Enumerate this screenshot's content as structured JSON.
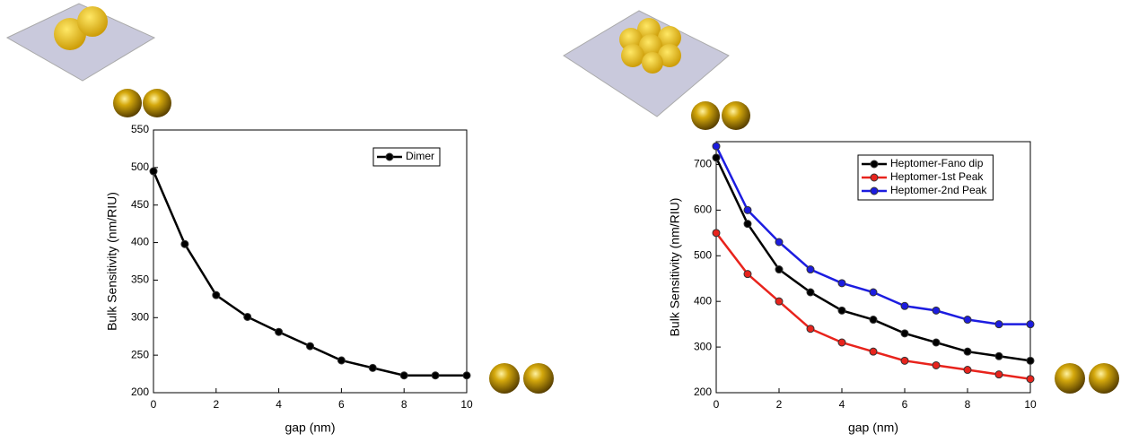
{
  "chart_data": [
    {
      "type": "line",
      "x": [
        0,
        1,
        2,
        3,
        4,
        5,
        6,
        7,
        8,
        9,
        10
      ],
      "series": [
        {
          "name": "Dimer",
          "color": "#000000",
          "values": [
            495,
            398,
            330,
            301,
            281,
            262,
            243,
            233,
            223,
            223,
            223
          ]
        }
      ],
      "xlim": [
        0,
        10
      ],
      "ylim": [
        200,
        550
      ],
      "xticks": [
        0,
        2,
        4,
        6,
        8,
        10
      ],
      "yticks": [
        200,
        250,
        300,
        350,
        400,
        450,
        500,
        550
      ],
      "x_label": "gap (nm)",
      "y_label": "Bulk Sensitivity (nm/RIU)"
    },
    {
      "type": "line",
      "x": [
        0,
        1,
        2,
        3,
        4,
        5,
        6,
        7,
        8,
        9,
        10
      ],
      "series": [
        {
          "name": "Heptomer-Fano dip",
          "color": "#000000",
          "values": [
            715,
            570,
            470,
            420,
            380,
            360,
            330,
            310,
            290,
            280,
            270
          ]
        },
        {
          "name": "Heptomer-1st Peak",
          "color": "#e8231c",
          "values": [
            550,
            460,
            400,
            340,
            310,
            290,
            270,
            260,
            250,
            240,
            230
          ]
        },
        {
          "name": "Heptomer-2nd Peak",
          "color": "#1c1ce0",
          "values": [
            740,
            600,
            530,
            470,
            440,
            420,
            390,
            380,
            360,
            350,
            350
          ]
        }
      ],
      "xlim": [
        0,
        10
      ],
      "ylim": [
        200,
        750
      ],
      "xticks": [
        0,
        2,
        4,
        6,
        8,
        10
      ],
      "yticks": [
        200,
        300,
        400,
        500,
        600,
        700
      ],
      "x_label": "gap (nm)",
      "y_label": "Bulk Sensitivity (nm/RIU)"
    }
  ]
}
